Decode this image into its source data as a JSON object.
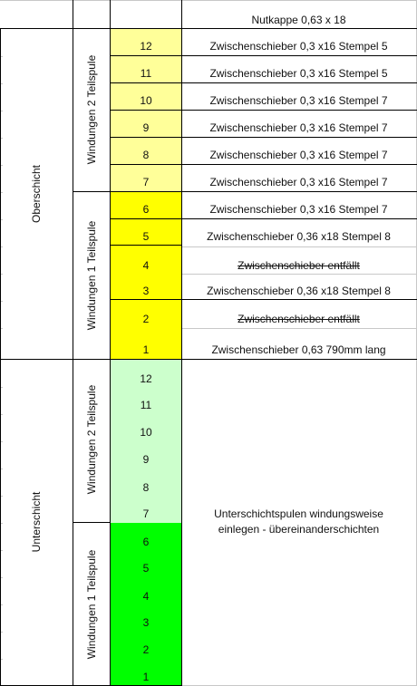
{
  "header": {
    "top_right": "Nutkappe 0,63 x 18"
  },
  "oberschicht": {
    "label": "Oberschicht",
    "group2_label": "Windungen 2 Teilspule",
    "group1_label": "Windungen 1 Teilspule",
    "rows": [
      {
        "num": "12",
        "text": "Zwischenschieber 0,3 x16 Stempel 5"
      },
      {
        "num": "11",
        "text": "Zwischenschieber 0,3 x16 Stempel 5"
      },
      {
        "num": "10",
        "text": "Zwischenschieber 0,3 x16 Stempel 7"
      },
      {
        "num": "9",
        "text": "Zwischenschieber 0,3 x16 Stempel 7"
      },
      {
        "num": "8",
        "text": "Zwischenschieber 0,3 x16 Stempel 7"
      },
      {
        "num": "7",
        "text": "Zwischenschieber 0,3 x16 Stempel 7"
      },
      {
        "num": "6",
        "text": "Zwischenschieber 0,3 x16 Stempel 7"
      },
      {
        "num": "5",
        "text": "Zwischenschieber 0,36 x18 Stempel 8"
      },
      {
        "num": "4",
        "text": "Zwischenschieber entfällt"
      },
      {
        "num": "3",
        "text": "Zwischenschieber 0,36 x18 Stempel 8"
      },
      {
        "num": "2",
        "text": "Zwischenschieber entfällt"
      },
      {
        "num": "1",
        "text": "Zwischenschieber 0,63 790mm lang"
      }
    ]
  },
  "unterschicht": {
    "label": "Unterschicht",
    "group2_label": "Windungen 2 Teilspule",
    "group1_label": "Windungen 1 Teilspule",
    "nums": [
      "12",
      "11",
      "10",
      "9",
      "8",
      "7",
      "6",
      "5",
      "4",
      "3",
      "2",
      "1"
    ],
    "note_line1": "Unterschichtspulen windungsweise",
    "note_line2": "einlegen - übereinanderschichten"
  },
  "colors": {
    "light_yellow": "#ffff99",
    "yellow": "#ffff00",
    "light_green": "#ccffcc",
    "green": "#00ff00",
    "grid": "#c8c8c8",
    "border": "#000000"
  }
}
